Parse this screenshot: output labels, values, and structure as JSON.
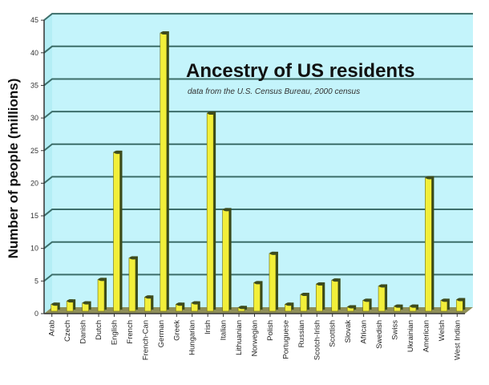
{
  "chart_data": {
    "type": "bar",
    "title": "Ancestry of US residents",
    "subtitle": "data from the U.S. Census Bureau, 2000 census",
    "xlabel": "",
    "ylabel": "Number of people (millions)",
    "ylim": [
      0,
      45
    ],
    "yticks": [
      0,
      5,
      10,
      15,
      20,
      25,
      30,
      35,
      40,
      45
    ],
    "grid": true,
    "legend": null,
    "categories": [
      "Arab",
      "Czech",
      "Danish",
      "Dutch",
      "English",
      "French",
      "French-Can",
      "German",
      "Greek",
      "Hungarian",
      "Irish",
      "Italian",
      "Lithuanian",
      "Norwegian",
      "Polish",
      "Portuguese",
      "Russian",
      "Scotch-Irish",
      "Scottish",
      "Slovak",
      "African",
      "Swedish",
      "Swiss",
      "Ukrainian",
      "American",
      "Welsh",
      "West Indian"
    ],
    "values": [
      1.2,
      1.7,
      1.4,
      5.0,
      24.5,
      8.3,
      2.3,
      42.8,
      1.2,
      1.4,
      30.5,
      15.7,
      0.7,
      4.5,
      9.0,
      1.2,
      2.7,
      4.3,
      4.9,
      0.8,
      1.8,
      4.0,
      0.9,
      0.9,
      20.6,
      1.8,
      1.9
    ],
    "colors": {
      "plot_background": "#c4f4fb",
      "bar_fill": "#f2ef3a",
      "bar_shadow": "#3a4a1a",
      "gridline": "#3c6e6a",
      "floor": "#8e8e5a"
    }
  }
}
